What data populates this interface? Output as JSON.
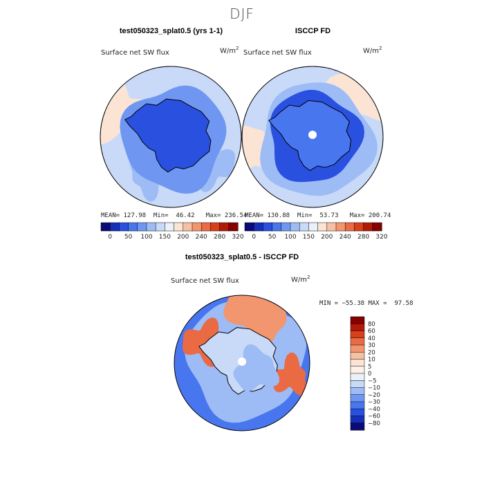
{
  "page": {
    "title": "DJF"
  },
  "chart_data": [
    {
      "type": "map",
      "title": "test050323_splat0.5 (yrs 1-1)",
      "variable": "Surface net SW flux",
      "units": "W/m",
      "units_exp": "2",
      "stats": {
        "mean_label": "MEAN=",
        "mean": "127.98",
        "min_label": "Min=",
        "min": "46.42",
        "max_label": "Max=",
        "max": "236.54"
      },
      "colorbar": {
        "ticks": [
          "0",
          "50",
          "100",
          "150",
          "200",
          "240",
          "280",
          "320"
        ],
        "colors": [
          "#0a0a78",
          "#1530b8",
          "#2a50e0",
          "#4876ee",
          "#6f97f2",
          "#9dbcf6",
          "#c9daf8",
          "#eaf1fb",
          "#fbe4d4",
          "#f7c0a0",
          "#f29670",
          "#ea6a44",
          "#d8401c",
          "#b21a08",
          "#860000"
        ]
      }
    },
    {
      "type": "map",
      "title": "ISCCP FD",
      "variable": "Surface net SW flux",
      "units": "W/m",
      "units_exp": "2",
      "stats": {
        "mean_label": "MEAN=",
        "mean": "130.88",
        "min_label": "Min=",
        "min": "53.73",
        "max_label": "Max=",
        "max": "200.74"
      },
      "colorbar": {
        "ticks": [
          "0",
          "50",
          "100",
          "150",
          "200",
          "240",
          "280",
          "320"
        ],
        "colors": [
          "#0a0a78",
          "#1530b8",
          "#2a50e0",
          "#4876ee",
          "#6f97f2",
          "#9dbcf6",
          "#c9daf8",
          "#eaf1fb",
          "#fbe4d4",
          "#f7c0a0",
          "#f29670",
          "#ea6a44",
          "#d8401c",
          "#b21a08",
          "#860000"
        ]
      }
    },
    {
      "type": "map",
      "title": "test050323_splat0.5 - ISCCP FD",
      "variable": "Surface net SW flux",
      "units": "W/m",
      "units_exp": "2",
      "stats": {
        "min_label": "MIN =",
        "min": "−55.38",
        "max_label": "MAX =",
        "max": "97.58"
      },
      "colorbar": {
        "ticks": [
          "80",
          "60",
          "40",
          "30",
          "20",
          "10",
          "5",
          "0",
          "−5",
          "−10",
          "−20",
          "−30",
          "−40",
          "−60",
          "−80"
        ],
        "colors": [
          "#860000",
          "#b21a08",
          "#d8401c",
          "#ea6a44",
          "#f29670",
          "#f7c0a0",
          "#fbe4d4",
          "#fdf0e6",
          "#eaf1fb",
          "#c9daf8",
          "#9dbcf6",
          "#6f97f2",
          "#4876ee",
          "#2a50e0",
          "#1530b8",
          "#0a0a78"
        ]
      }
    }
  ]
}
